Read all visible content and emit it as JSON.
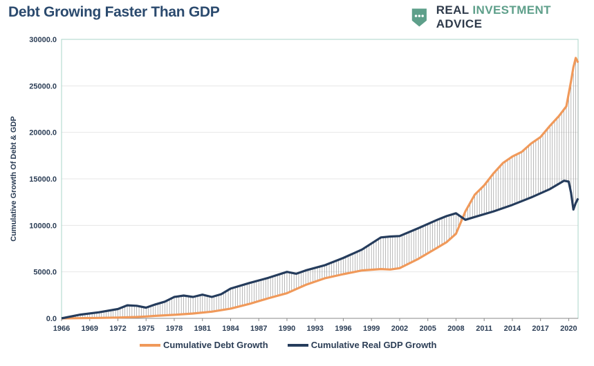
{
  "page": {
    "title": "Debt Growing Faster Than GDP",
    "brand": {
      "word1": "REAL",
      "word2": "INVESTMENT",
      "word3": "ADVICE",
      "icon": "chart-logo-icon"
    }
  },
  "colors": {
    "debt": "#f0995a",
    "gdp": "#253c5c",
    "hatch": "#888888",
    "axis": "#2b3d55",
    "grid": "#e6e6e6",
    "frame": "#a8d5c9"
  },
  "chart_data": {
    "type": "line",
    "title": "Debt Growing Faster Than GDP",
    "ylabel": "Cumulative Growth Of Debt & GDP",
    "xlabel": "",
    "ylim": [
      0,
      30000
    ],
    "xlim": [
      1966,
      2021
    ],
    "y_ticks": [
      "0.0",
      "5000.0",
      "10000.0",
      "15000.0",
      "20000.0",
      "25000.0",
      "30000.0"
    ],
    "y_tick_values": [
      0,
      5000,
      10000,
      15000,
      20000,
      25000,
      30000
    ],
    "x_ticks": [
      "1966",
      "1969",
      "1972",
      "1975",
      "1978",
      "1981",
      "1984",
      "1987",
      "1990",
      "1993",
      "1996",
      "1999",
      "2002",
      "2005",
      "2008",
      "2011",
      "2014",
      "2017",
      "2020"
    ],
    "grid": true,
    "legend_position": "bottom",
    "series": [
      {
        "name": "Cumulative Debt Growth",
        "x": [
          1966,
          1968,
          1970,
          1972,
          1974,
          1975,
          1976,
          1978,
          1980,
          1982,
          1984,
          1986,
          1988,
          1990,
          1992,
          1994,
          1996,
          1998,
          2000,
          2001,
          2002,
          2004,
          2006,
          2007,
          2008,
          2009,
          2010,
          2011,
          2012,
          2013,
          2014,
          2015,
          2016,
          2017,
          2018,
          2019,
          2019.75,
          2020.25,
          2020.5,
          2020.75,
          2021
        ],
        "values": [
          0,
          20,
          50,
          90,
          150,
          200,
          270,
          380,
          520,
          720,
          1050,
          1550,
          2150,
          2700,
          3600,
          4300,
          4750,
          5150,
          5300,
          5250,
          5400,
          6400,
          7600,
          8200,
          9100,
          11500,
          13300,
          14300,
          15600,
          16700,
          17400,
          17900,
          18800,
          19500,
          20700,
          21800,
          22800,
          25500,
          27000,
          28000,
          27500
        ]
      },
      {
        "name": "Cumulative Real GDP Growth",
        "x": [
          1966,
          1968,
          1970,
          1972,
          1973,
          1974,
          1975,
          1976,
          1977,
          1978,
          1979,
          1980,
          1981,
          1982,
          1983,
          1984,
          1986,
          1988,
          1990,
          1991,
          1992,
          1994,
          1996,
          1998,
          2000,
          2001,
          2002,
          2004,
          2006,
          2007,
          2008,
          2009,
          2010,
          2012,
          2014,
          2016,
          2018,
          2019.5,
          2020,
          2020.25,
          2020.5,
          2020.75,
          2021
        ],
        "values": [
          0,
          400,
          650,
          1000,
          1400,
          1350,
          1150,
          1500,
          1800,
          2300,
          2450,
          2300,
          2550,
          2300,
          2600,
          3200,
          3800,
          4350,
          5000,
          4800,
          5150,
          5700,
          6500,
          7400,
          8700,
          8800,
          8850,
          9700,
          10600,
          11000,
          11300,
          10600,
          10900,
          11500,
          12200,
          13000,
          13900,
          14800,
          14700,
          13500,
          11700,
          12400,
          12900
        ]
      }
    ]
  },
  "legend": {
    "debt_label": "Cumulative Debt Growth",
    "gdp_label": "Cumulative Real GDP Growth"
  }
}
